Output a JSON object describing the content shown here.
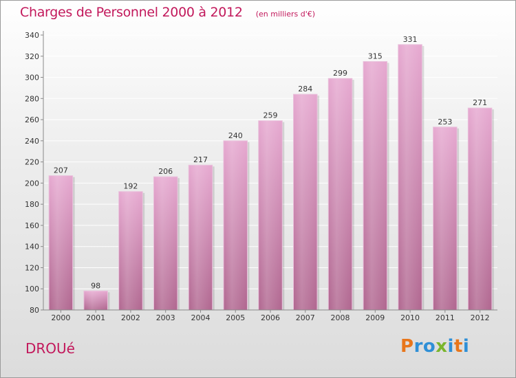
{
  "title": "Charges de Personnel 2000 à 2012",
  "subtitle": "(en milliers d'€)",
  "commune": "DROUé",
  "logo": {
    "letters": [
      {
        "ch": "P",
        "color": "#e8761b"
      },
      {
        "ch": "r",
        "color": "#2f8fd6"
      },
      {
        "ch": "o",
        "color": "#2f8fd6"
      },
      {
        "ch": "x",
        "color": "#7ab52d"
      },
      {
        "ch": "i",
        "color": "#2f8fd6"
      },
      {
        "ch": "t",
        "color": "#e8761b"
      },
      {
        "ch": "i",
        "color": "#2f8fd6"
      }
    ]
  },
  "colors": {
    "title": "#c2185b",
    "bar_top": "#e6a8d0",
    "bar_bottom": "#b0668f",
    "grid": "#ffffff",
    "axis_text": "#333333"
  },
  "chart_data": {
    "type": "bar",
    "categories": [
      "2000",
      "2001",
      "2002",
      "2003",
      "2004",
      "2005",
      "2006",
      "2007",
      "2008",
      "2009",
      "2010",
      "2011",
      "2012"
    ],
    "values": [
      207,
      98,
      192,
      206,
      217,
      240,
      259,
      284,
      299,
      315,
      331,
      253,
      271
    ],
    "value_labels": [
      "207",
      "98",
      "192",
      "206",
      "217",
      "240",
      "259",
      "284",
      "299",
      "315",
      "331",
      "253",
      "271"
    ],
    "ylim": [
      80,
      340
    ],
    "yticks": [
      80,
      100,
      120,
      140,
      160,
      180,
      200,
      220,
      240,
      260,
      280,
      300,
      320,
      340
    ],
    "grid": true
  }
}
